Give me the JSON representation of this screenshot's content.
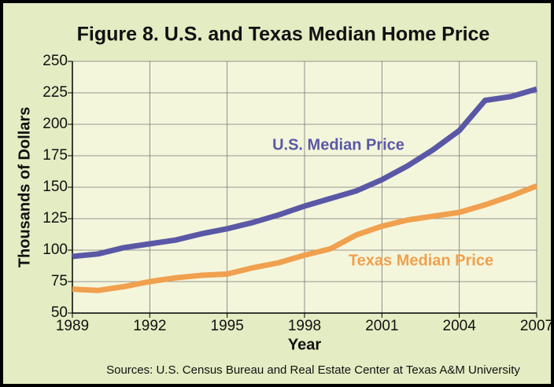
{
  "chart_data": {
    "type": "line",
    "title": "Figure 8. U.S. and Texas Median Home Price",
    "xlabel": "Year",
    "ylabel": "Thousands of Dollars",
    "source": "Sources: U.S. Census Bureau and Real Estate Center at Texas A&M University",
    "x": [
      1989,
      1990,
      1991,
      1992,
      1993,
      1994,
      1995,
      1996,
      1997,
      1998,
      1999,
      2000,
      2001,
      2002,
      2003,
      2004,
      2005,
      2006,
      2007
    ],
    "series": [
      {
        "name": "U.S. Median Price",
        "color": "#5a58a6",
        "values": [
          95,
          97,
          102,
          105,
          108,
          113,
          117,
          122,
          128,
          135,
          141,
          147,
          156,
          167,
          180,
          195,
          219,
          222,
          228
        ]
      },
      {
        "name": "Texas Median Price",
        "color": "#f0a04e",
        "values": [
          69,
          68,
          71,
          75,
          78,
          80,
          81,
          86,
          90,
          96,
          101,
          112,
          119,
          124,
          127,
          130,
          136,
          143,
          151
        ]
      }
    ],
    "xlim": [
      1989,
      2007
    ],
    "xticks": [
      1989,
      1992,
      1995,
      1998,
      2001,
      2004,
      2007
    ],
    "ylim": [
      50,
      250
    ],
    "yticks": [
      50,
      75,
      100,
      125,
      150,
      175,
      200,
      225,
      250
    ],
    "grid": true
  }
}
